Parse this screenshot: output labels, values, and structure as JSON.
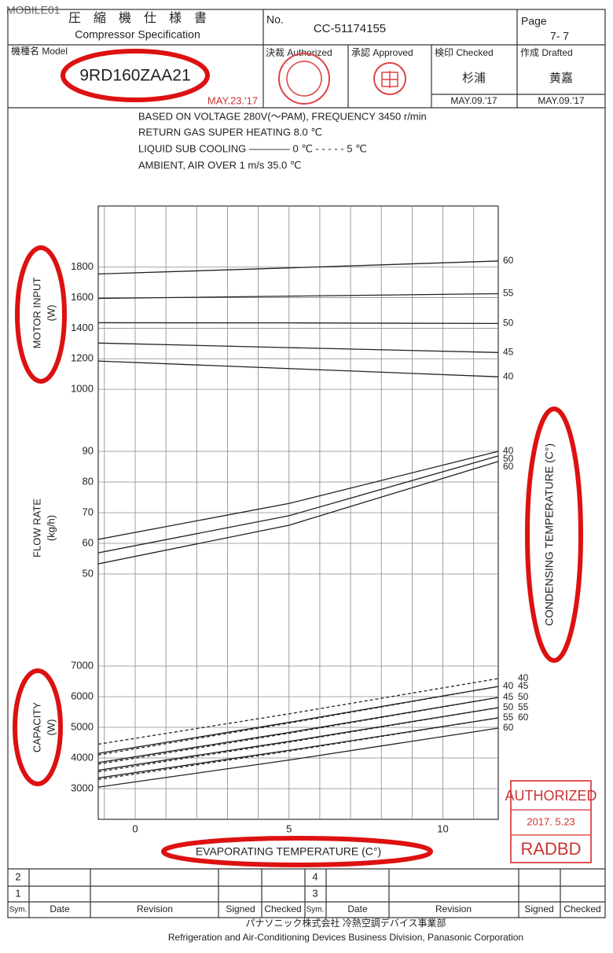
{
  "watermark": "MOBILE01",
  "header": {
    "title_jp": "圧　縮　機　仕　様　書",
    "title_en": "Compressor Specification",
    "no_label": "No.",
    "no_value": "CC-51174155",
    "page_label": "Page",
    "page_value": "7- 7",
    "model_label": "機種名 Model",
    "model_value": "9RD160ZAA21",
    "model_note": "MAY.23.'17",
    "authorized_label": "決裁 Authorized",
    "approved_label": "承認 Approved",
    "checked_label": "検印 Checked",
    "drafted_label": "作成 Drafted",
    "checked_name": "杉浦",
    "drafted_name": "黄嘉",
    "checked_date": "MAY.09.'17",
    "drafted_date": "MAY.09.'17"
  },
  "conditions": [
    "BASED ON    VOLTAGE  280V(〜PAM),  FREQUENCY  3450   r/min",
    "RETURN GAS SUPER HEATING   8.0  ℃",
    "LIQUID SUB COOLING ———— 0  ℃  - - - - - 5  ℃",
    "AMBIENT,  AIR OVER 1 m/s   35.0  ℃"
  ],
  "chart_data": {
    "type": "line",
    "x_label": "EVAPORATING  TEMPERATURE (C°)",
    "right_label": "CONDENSING  TEMPERATURE (C°)",
    "xlim": [
      -1.2,
      11.8
    ],
    "xticks": [
      0,
      5,
      10
    ],
    "xminor": [
      -1,
      0,
      1,
      2,
      3,
      4,
      5,
      6,
      7,
      8,
      9,
      10,
      11
    ],
    "x": [
      -1.2,
      5,
      11.8
    ],
    "color": "#222222",
    "panels": [
      {
        "label": "MOTOR INPUT",
        "unit": "(W)",
        "ylim": [
          800,
          2200
        ],
        "yticks": [
          1000,
          1200,
          1400,
          1600,
          1800
        ],
        "series": [
          {
            "name": "60",
            "values": [
              1755,
              1795,
              1840
            ],
            "style": "solid"
          },
          {
            "name": "55",
            "values": [
              1595,
              1610,
              1626
            ],
            "style": "solid"
          },
          {
            "name": "50",
            "values": [
              1436,
              1435,
              1431
            ],
            "style": "solid"
          },
          {
            "name": "45",
            "values": [
              1303,
              1273,
              1241
            ],
            "style": "solid"
          },
          {
            "name": "40",
            "values": [
              1185,
              1136,
              1082
            ],
            "style": "solid"
          }
        ]
      },
      {
        "label": "FLOW  RATE",
        "unit": "(kg/h)",
        "ylim": [
          30,
          100
        ],
        "yticks": [
          50,
          60,
          70,
          80,
          90
        ],
        "series": [
          {
            "name": "40",
            "values": [
              61.3,
              73,
              90
            ],
            "style": "solid"
          },
          {
            "name": "50",
            "values": [
              56.9,
              69,
              88.5
            ],
            "style": "solid"
          },
          {
            "name": "60",
            "values": [
              53.3,
              65.9,
              86.7
            ],
            "style": "solid"
          }
        ]
      },
      {
        "label": "CAPACITY",
        "unit": "(W)",
        "ylim": [
          2000,
          8000
        ],
        "yticks": [
          3000,
          4000,
          5000,
          6000,
          7000
        ],
        "series": [
          {
            "name": "40",
            "values": [
              4450,
              5440,
              6590
            ],
            "style": "dashed"
          },
          {
            "name": "45",
            "values": [
              4100,
              5137,
              6333
            ],
            "style": "dashed"
          },
          {
            "name": "50",
            "values": [
              3800,
              4807,
              5974
            ],
            "style": "dashed"
          },
          {
            "name": "55",
            "values": [
              3550,
              4516,
              5641
            ],
            "style": "dashed"
          },
          {
            "name": "60",
            "values": [
              3300,
              4224,
              5308
            ],
            "style": "dashed"
          },
          {
            "name": "40",
            "values": [
              4150,
              5162,
              6333
            ],
            "style": "solid"
          },
          {
            "name": "45",
            "values": [
              3850,
              4832,
              5974
            ],
            "style": "solid"
          },
          {
            "name": "50",
            "values": [
              3600,
              4540,
              5641
            ],
            "style": "solid"
          },
          {
            "name": "55",
            "values": [
              3350,
              4249,
              5308
            ],
            "style": "solid"
          },
          {
            "name": "60",
            "values": [
              3050,
              3932,
              4974
            ],
            "style": "solid"
          }
        ]
      }
    ]
  },
  "stamp": {
    "line1": "AUTHORIZED",
    "line2": "2017. 5.23",
    "line3": "RADBD"
  },
  "revision_table": {
    "left_rows": [
      "2",
      "1"
    ],
    "right_rows": [
      "4",
      "3"
    ],
    "columns": [
      "Sym.",
      "Date",
      "Revision",
      "Signed",
      "Checked"
    ]
  },
  "footer": {
    "jp": "パナソニック株式会社  冷熱空調デバイス事業部",
    "en": "Refrigeration and  Air-Conditioning Devices Business Division,  Panasonic Corporation"
  }
}
